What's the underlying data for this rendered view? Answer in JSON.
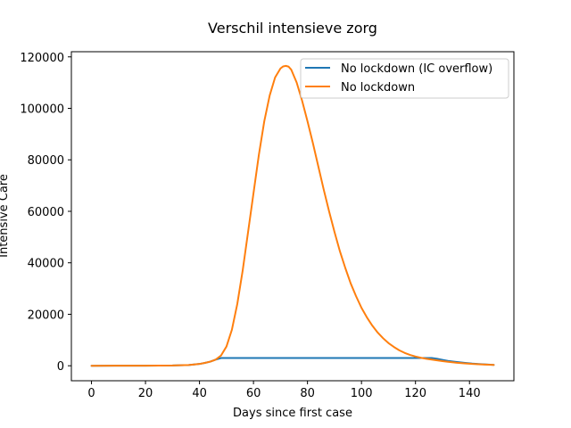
{
  "chart_data": {
    "type": "line",
    "title": "Verschil intensieve zorg",
    "xlabel": "Days since first case",
    "ylabel": "Intensive Care",
    "xlim": [
      -7.45,
      156.45
    ],
    "ylim": [
      -5820,
      122000
    ],
    "xticks": [
      0,
      20,
      40,
      60,
      80,
      100,
      120,
      140
    ],
    "yticks": [
      0,
      20000,
      40000,
      60000,
      80000,
      100000,
      120000
    ],
    "grid": false,
    "legend_position": "top-right",
    "series": [
      {
        "name": "No lockdown (IC overflow)",
        "color": "#1f77b4",
        "x": [
          0,
          20,
          30,
          36,
          40,
          42,
          44,
          46,
          48,
          60,
          80,
          100,
          120,
          126,
          128,
          130,
          132,
          135,
          138,
          141,
          144,
          147,
          149
        ],
        "y": [
          0,
          20,
          100,
          300,
          700,
          1100,
          1600,
          2400,
          3000,
          3000,
          3000,
          3000,
          3000,
          3000,
          2700,
          2300,
          1900,
          1500,
          1150,
          850,
          650,
          450,
          350
        ]
      },
      {
        "name": "No lockdown",
        "color": "#ff7f0e",
        "x": [
          0,
          20,
          30,
          36,
          40,
          42,
          44,
          46,
          48,
          50,
          52,
          54,
          56,
          58,
          60,
          62,
          64,
          66,
          68,
          70,
          71,
          72,
          73,
          74,
          76,
          78,
          80,
          82,
          84,
          86,
          88,
          90,
          92,
          94,
          96,
          98,
          100,
          102,
          104,
          106,
          108,
          110,
          112,
          114,
          116,
          118,
          120,
          122,
          124,
          126,
          128,
          130,
          132,
          135,
          138,
          141,
          144,
          147,
          149
        ],
        "y": [
          0,
          20,
          100,
          300,
          700,
          1100,
          1600,
          2400,
          4000,
          7500,
          14000,
          24000,
          37000,
          52000,
          67000,
          82000,
          95000,
          105000,
          112000,
          115500,
          116300,
          116500,
          116200,
          115000,
          110000,
          103000,
          95000,
          86500,
          77500,
          68500,
          60000,
          52000,
          44500,
          38000,
          32000,
          27000,
          22500,
          18800,
          15600,
          12900,
          10700,
          8800,
          7300,
          6000,
          5000,
          4200,
          3600,
          3100,
          2700,
          2400,
          2100,
          1800,
          1550,
          1200,
          950,
          700,
          550,
          400,
          350
        ]
      }
    ]
  }
}
